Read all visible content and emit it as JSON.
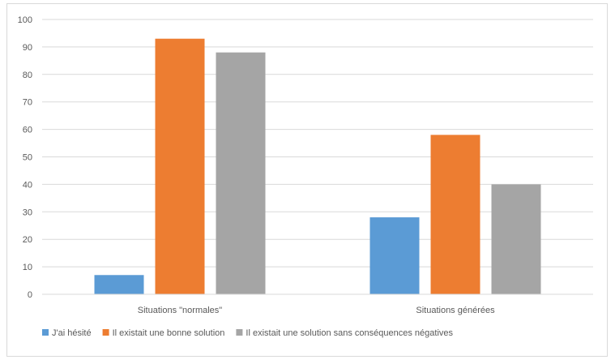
{
  "chart_data": {
    "type": "bar",
    "categories": [
      "Situations \"normales\"",
      "Situations générées"
    ],
    "series": [
      {
        "name": "J'ai hésité",
        "values": [
          7,
          28
        ],
        "color": "#5b9bd5"
      },
      {
        "name": "Il existait une bonne solution",
        "values": [
          93,
          58
        ],
        "color": "#ed7d31"
      },
      {
        "name": "Il existait une solution sans conséquences négatives",
        "values": [
          88,
          40
        ],
        "color": "#a5a5a5"
      }
    ],
    "ylim": [
      0,
      100
    ],
    "yticks": [
      0,
      10,
      20,
      30,
      40,
      50,
      60,
      70,
      80,
      90,
      100
    ],
    "grid": true,
    "legend_position": "bottom",
    "title": "",
    "xlabel": "",
    "ylabel": ""
  }
}
